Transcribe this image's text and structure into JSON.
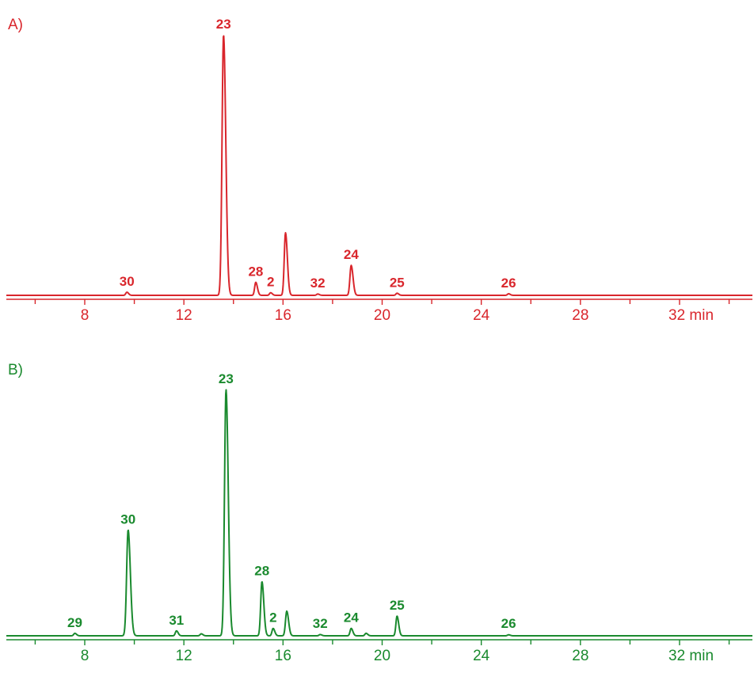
{
  "chart_data": [
    {
      "type": "line",
      "panel_label": "A)",
      "color": "#d9262c",
      "xlim": [
        5,
        35
      ],
      "x_ticks": [
        8,
        12,
        16,
        20,
        24,
        28,
        32
      ],
      "x_tick_labels": [
        "8",
        "12",
        "16",
        "20",
        "24",
        "28",
        "32 min"
      ],
      "peaks": [
        {
          "label": "30",
          "x": 9.7,
          "height": 0.012
        },
        {
          "label": "23",
          "x": 13.6,
          "height": 1.0
        },
        {
          "label": "28",
          "x": 14.9,
          "height": 0.05
        },
        {
          "label": "2",
          "x": 15.5,
          "height": 0.01
        },
        {
          "label": "",
          "x": 16.1,
          "height": 0.24
        },
        {
          "label": "32",
          "x": 17.4,
          "height": 0.005
        },
        {
          "label": "24",
          "x": 18.75,
          "height": 0.115
        },
        {
          "label": "25",
          "x": 20.6,
          "height": 0.008
        },
        {
          "label": "26",
          "x": 25.1,
          "height": 0.006
        }
      ]
    },
    {
      "type": "line",
      "panel_label": "B)",
      "color": "#1a8a2e",
      "xlim": [
        5,
        35
      ],
      "x_ticks": [
        8,
        12,
        16,
        20,
        24,
        28,
        32
      ],
      "x_tick_labels": [
        "8",
        "12",
        "16",
        "20",
        "24",
        "28",
        "32 min"
      ],
      "peaks": [
        {
          "label": "29",
          "x": 7.6,
          "height": 0.01
        },
        {
          "label": "30",
          "x": 9.75,
          "height": 0.43
        },
        {
          "label": "31",
          "x": 11.7,
          "height": 0.02
        },
        {
          "label": "",
          "x": 12.7,
          "height": 0.008
        },
        {
          "label": "23",
          "x": 13.7,
          "height": 1.0
        },
        {
          "label": "28",
          "x": 15.15,
          "height": 0.22
        },
        {
          "label": "2",
          "x": 15.6,
          "height": 0.03
        },
        {
          "label": "",
          "x": 16.15,
          "height": 0.1
        },
        {
          "label": "32",
          "x": 17.5,
          "height": 0.005
        },
        {
          "label": "24",
          "x": 18.75,
          "height": 0.03
        },
        {
          "label": "",
          "x": 19.35,
          "height": 0.01
        },
        {
          "label": "25",
          "x": 20.6,
          "height": 0.08
        },
        {
          "label": "26",
          "x": 25.1,
          "height": 0.004
        }
      ]
    }
  ]
}
